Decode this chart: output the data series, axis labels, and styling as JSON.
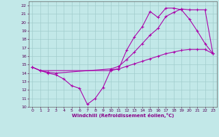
{
  "xlabel": "Windchill (Refroidissement éolien,°C)",
  "bg_color": "#c2e8e8",
  "grid_color": "#a0cccc",
  "line_color": "#aa00aa",
  "xlim": [
    -0.5,
    23.5
  ],
  "ylim": [
    10,
    22.5
  ],
  "xticks": [
    0,
    1,
    2,
    3,
    4,
    5,
    6,
    7,
    8,
    9,
    10,
    11,
    12,
    13,
    14,
    15,
    16,
    17,
    18,
    19,
    20,
    21,
    22,
    23
  ],
  "yticks": [
    10,
    11,
    12,
    13,
    14,
    15,
    16,
    17,
    18,
    19,
    20,
    21,
    22
  ],
  "line1_x": [
    0,
    1,
    2,
    3,
    4,
    5,
    6,
    7,
    8,
    9,
    10,
    11,
    12,
    13,
    14,
    15,
    16,
    17,
    18,
    19,
    20,
    21,
    22,
    23
  ],
  "line1_y": [
    14.7,
    14.3,
    14.0,
    13.8,
    13.3,
    12.5,
    12.2,
    10.3,
    11.0,
    12.3,
    14.4,
    14.5,
    16.7,
    18.3,
    19.5,
    21.3,
    20.6,
    21.7,
    21.7,
    21.5,
    20.4,
    19.0,
    17.5,
    16.3
  ],
  "line2_x": [
    0,
    1,
    2,
    3,
    10,
    11,
    12,
    13,
    14,
    15,
    16,
    17,
    18,
    19,
    20,
    21,
    22,
    23
  ],
  "line2_y": [
    14.7,
    14.3,
    14.1,
    14.0,
    14.5,
    14.8,
    15.6,
    16.5,
    17.5,
    18.5,
    19.3,
    20.7,
    21.2,
    21.6,
    21.5,
    21.5,
    21.5,
    16.3
  ],
  "line3_x": [
    0,
    1,
    10,
    11,
    12,
    13,
    14,
    15,
    16,
    17,
    18,
    19,
    20,
    21,
    22,
    23
  ],
  "line3_y": [
    14.7,
    14.3,
    14.3,
    14.5,
    14.8,
    15.1,
    15.4,
    15.7,
    16.0,
    16.3,
    16.5,
    16.7,
    16.8,
    16.8,
    16.8,
    16.3
  ]
}
